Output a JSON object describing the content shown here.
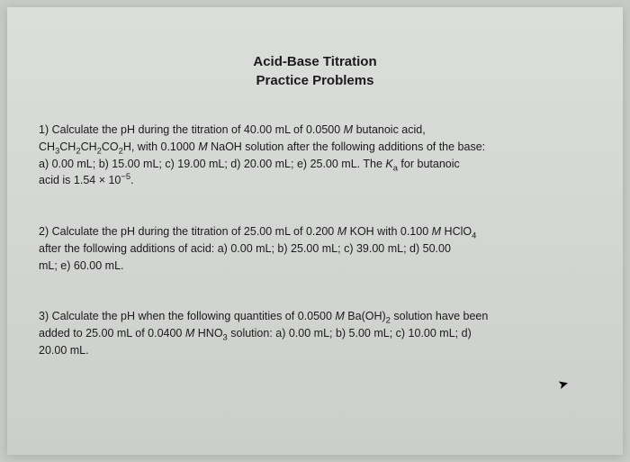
{
  "title": {
    "line1": "Acid-Base Titration",
    "line2": "Practice Problems"
  },
  "problems": {
    "p1": {
      "number": "1)",
      "intro": "Calculate the pH during the titration of 40.00 mL of 0.0500 ",
      "molarity1": "M",
      "acid_name": " butanoic acid,",
      "formula_prefix": "CH",
      "sub3": "3",
      "mid1": "CH",
      "sub2a": "2",
      "mid2": "CH",
      "sub2b": "2",
      "mid3": "CO",
      "sub2c": "2",
      "end": "H, with 0.1000 ",
      "molarity2": "M",
      "after_formula": " NaOH solution after the following additions of the base:",
      "options": "a) 0.00 mL; b) 15.00 mL; c) 19.00 mL; d) 20.00 mL; e) 25.00 mL. The ",
      "ka_prefix": "K",
      "ka_sub": "a",
      "ka_text": " for butanoic",
      "ka_value": "acid is 1.54 × 10",
      "ka_exp": "−5",
      "ka_period": "."
    },
    "p2": {
      "number": "2)",
      "text1": "Calculate the pH during the titration of 25.00 mL of 0.200 ",
      "m1": "M",
      "text2": " KOH with 0.100 ",
      "m2": "M",
      "text3": " HClO",
      "sub4": "4",
      "text4": "after the following additions of acid: a) 0.00 mL; b) 25.00 mL; c) 39.00 mL; d) 50.00",
      "text5": "mL; e) 60.00 mL."
    },
    "p3": {
      "number": "3)",
      "text1": "Calculate the pH when the following quantities of 0.0500 ",
      "m1": "M",
      "text2": " Ba(OH)",
      "sub2": "2",
      "text3": " solution have been",
      "text4": "added to 25.00 mL of 0.0400 ",
      "m2": "M",
      "text5": " HNO",
      "sub3": "3",
      "text6": " solution: a) 0.00 mL; b) 5.00 mL; c) 10.00 mL; d)",
      "text7": "20.00 mL."
    }
  },
  "styling": {
    "page_bg": "#c8cac8",
    "paper_bg_top": "#dcdedc",
    "paper_bg_bottom": "#cccecb",
    "text_color": "#1a1a1a",
    "title_fontsize": 15,
    "body_fontsize": 12.5,
    "font_family": "Verdana, Arial, sans-serif"
  }
}
